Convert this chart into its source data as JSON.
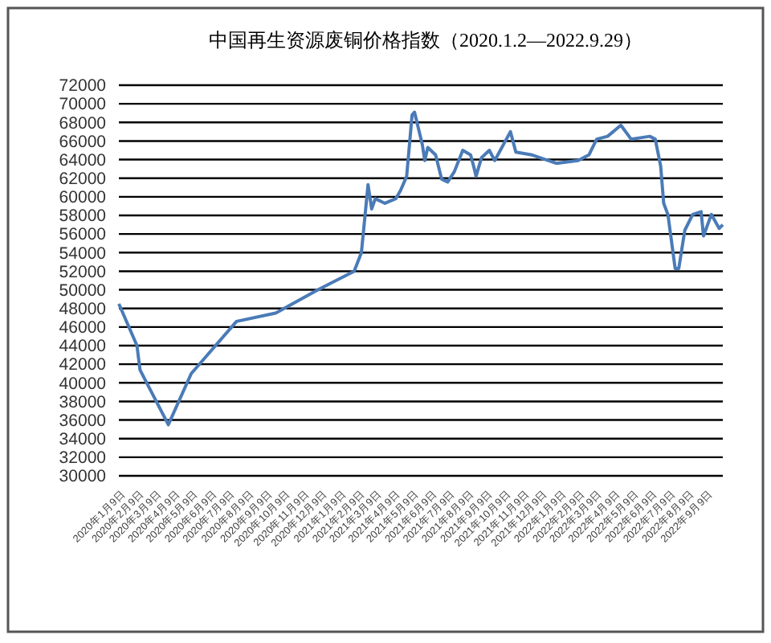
{
  "chart_data": {
    "type": "line",
    "title": "中国再生资源废铜价格指数（2020.1.2—2022.9.29）",
    "x": [
      "2020-01-02",
      "2020-02-01",
      "2020-02-06",
      "2020-03-24",
      "2020-05-01",
      "2020-07-15",
      "2020-09-18",
      "2020-11-27",
      "2021-01-26",
      "2021-02-07",
      "2021-02-18",
      "2021-02-24",
      "2021-03-02",
      "2021-03-18",
      "2021-04-05",
      "2021-04-13",
      "2021-04-23",
      "2021-05-02",
      "2021-05-06",
      "2021-05-19",
      "2021-05-23",
      "2021-05-28",
      "2021-06-10",
      "2021-06-20",
      "2021-06-30",
      "2021-07-11",
      "2021-07-25",
      "2021-08-07",
      "2021-08-12",
      "2021-08-16",
      "2021-08-25",
      "2021-09-07",
      "2021-09-16",
      "2021-10-12",
      "2021-10-21",
      "2021-11-17",
      "2021-12-27",
      "2022-02-01",
      "2022-02-19",
      "2022-03-04",
      "2022-03-22",
      "2022-04-13",
      "2022-04-30",
      "2022-05-31",
      "2022-06-09",
      "2022-06-18",
      "2022-06-23",
      "2022-06-30",
      "2022-07-12",
      "2022-07-18",
      "2022-07-28",
      "2022-08-10",
      "2022-08-24",
      "2022-08-28",
      "2022-09-10",
      "2022-09-23",
      "2022-09-29"
    ],
    "series": [
      {
        "color": "#4a7bb7",
        "values": [
          48500,
          44000,
          41400,
          35500,
          41000,
          46600,
          47500,
          50000,
          52000,
          54000,
          61300,
          58700,
          59800,
          59300,
          59800,
          60700,
          62200,
          68800,
          69100,
          65600,
          63900,
          65300,
          64500,
          61900,
          61600,
          62700,
          65000,
          64500,
          63300,
          62200,
          64200,
          65000,
          63900,
          67000,
          64800,
          64500,
          63600,
          63900,
          64500,
          66200,
          66500,
          67700,
          66200,
          66500,
          66200,
          63300,
          59300,
          58100,
          52300,
          52300,
          56400,
          58100,
          58400,
          55800,
          58100,
          56600,
          57000
        ]
      }
    ],
    "xlim": [
      "2020-01-02",
      "2022-09-29"
    ],
    "xticks": [
      {
        "value": "2020-01-09",
        "label": "2020年1月9日"
      },
      {
        "value": "2020-02-09",
        "label": "2020年2月9日"
      },
      {
        "value": "2020-03-09",
        "label": "2020年3月9日"
      },
      {
        "value": "2020-04-09",
        "label": "2020年4月9日"
      },
      {
        "value": "2020-05-09",
        "label": "2020年5月9日"
      },
      {
        "value": "2020-06-09",
        "label": "2020年6月9日"
      },
      {
        "value": "2020-07-09",
        "label": "2020年7月9日"
      },
      {
        "value": "2020-08-09",
        "label": "2020年8月9日"
      },
      {
        "value": "2020-09-09",
        "label": "2020年9月9日"
      },
      {
        "value": "2020-10-09",
        "label": "2020年10月9日"
      },
      {
        "value": "2020-11-09",
        "label": "2020年11月9日"
      },
      {
        "value": "2020-12-09",
        "label": "2020年12月9日"
      },
      {
        "value": "2021-01-09",
        "label": "2021年1月9日"
      },
      {
        "value": "2021-02-09",
        "label": "2021年2月9日"
      },
      {
        "value": "2021-03-09",
        "label": "2021年3月9日"
      },
      {
        "value": "2021-04-09",
        "label": "2021年4月9日"
      },
      {
        "value": "2021-05-09",
        "label": "2021年5月9日"
      },
      {
        "value": "2021-06-09",
        "label": "2021年6月9日"
      },
      {
        "value": "2021-07-09",
        "label": "2021年7月9日"
      },
      {
        "value": "2021-08-09",
        "label": "2021年8月9日"
      },
      {
        "value": "2021-09-09",
        "label": "2021年9月9日"
      },
      {
        "value": "2021-10-09",
        "label": "2021年10月9日"
      },
      {
        "value": "2021-11-09",
        "label": "2021年11月9日"
      },
      {
        "value": "2021-12-09",
        "label": "2021年12月9日"
      },
      {
        "value": "2022-01-09",
        "label": "2022年1月9日"
      },
      {
        "value": "2022-02-09",
        "label": "2022年2月9日"
      },
      {
        "value": "2022-03-09",
        "label": "2022年3月9日"
      },
      {
        "value": "2022-04-09",
        "label": "2022年4月9日"
      },
      {
        "value": "2022-05-09",
        "label": "2022年5月9日"
      },
      {
        "value": "2022-06-09",
        "label": "2022年6月9日"
      },
      {
        "value": "2022-07-09",
        "label": "2022年7月9日"
      },
      {
        "value": "2022-08-09",
        "label": "2022年8月9日"
      },
      {
        "value": "2022-09-09",
        "label": "2022年9月9日"
      }
    ],
    "ylim": [
      30000,
      72000
    ],
    "yticks": [
      30000,
      32000,
      34000,
      36000,
      38000,
      40000,
      42000,
      44000,
      46000,
      48000,
      50000,
      52000,
      54000,
      56000,
      58000,
      60000,
      62000,
      64000,
      66000,
      68000,
      70000,
      72000
    ],
    "grid": "y",
    "marker": "none",
    "line_style": "solid"
  }
}
